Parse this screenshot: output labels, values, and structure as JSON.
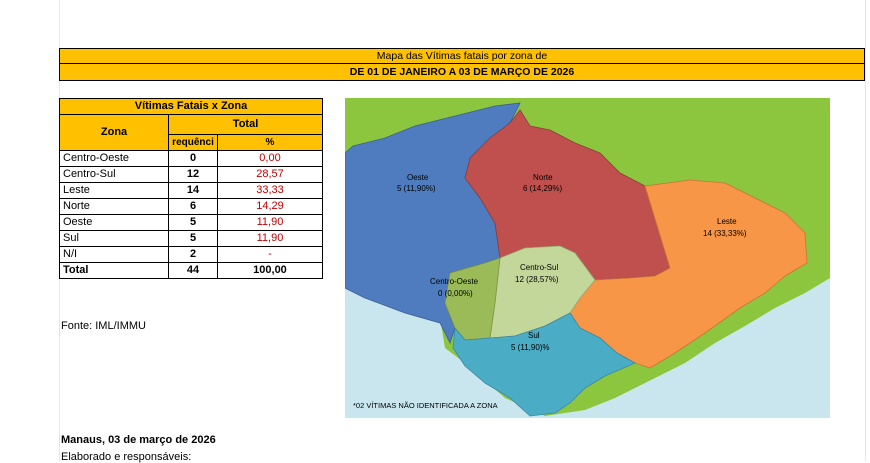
{
  "header": {
    "title": "Mapa das Vítimas fatais por zona de",
    "period": "DE 01 DE JANEIRO A 03 DE MARÇO DE 2026"
  },
  "table": {
    "caption": "Vítimas Fatais x Zona",
    "col_zona": "Zona",
    "col_total": "Total",
    "col_freq": "requênci",
    "col_pct": "%",
    "rows": [
      {
        "zona": "Centro-Oeste",
        "freq": "0",
        "pct": "0,00"
      },
      {
        "zona": "Centro-Sul",
        "freq": "12",
        "pct": "28,57"
      },
      {
        "zona": "Leste",
        "freq": "14",
        "pct": "33,33"
      },
      {
        "zona": "Norte",
        "freq": "6",
        "pct": "14,29"
      },
      {
        "zona": "Oeste",
        "freq": "5",
        "pct": "11,90"
      },
      {
        "zona": "Sul",
        "freq": "5",
        "pct": "11,90"
      },
      {
        "zona": "N/I",
        "freq": "2",
        "pct": "-"
      },
      {
        "zona": "Total",
        "freq": "44",
        "pct": "100,00"
      }
    ]
  },
  "source": "Fonte: IML/IMMU",
  "map": {
    "labels": {
      "oeste_name": "Oeste",
      "oeste_val": "5 (11,90%)",
      "norte_name": "Norte",
      "norte_val": "6 (14,29%)",
      "leste_name": "Leste",
      "leste_val": "14 (33,33%)",
      "centrosul_name": "Centro-Sul",
      "centrosul_val": "12 (28,57%)",
      "centrooeste_name": "Centro-Oeste",
      "centrooeste_val": "0 (0,00%)",
      "sul_name": "Sul",
      "sul_val": "5 (11,90)%"
    },
    "note": "*02 VÍTIMAS NÃO IDENTIFICADA A ZONA",
    "colors": {
      "background": "#8cc63f",
      "water": "#c9e6ef",
      "oeste": "#4f7bbf",
      "norte": "#c0504d",
      "leste": "#f79646",
      "centrosul": "#c4d79b",
      "centrooeste": "#9bbb59",
      "sul": "#4bacc6"
    }
  },
  "footer": {
    "place_date": "Manaus, 03 de março de 2026",
    "prepared": "Elaborado e responsáveis:"
  }
}
